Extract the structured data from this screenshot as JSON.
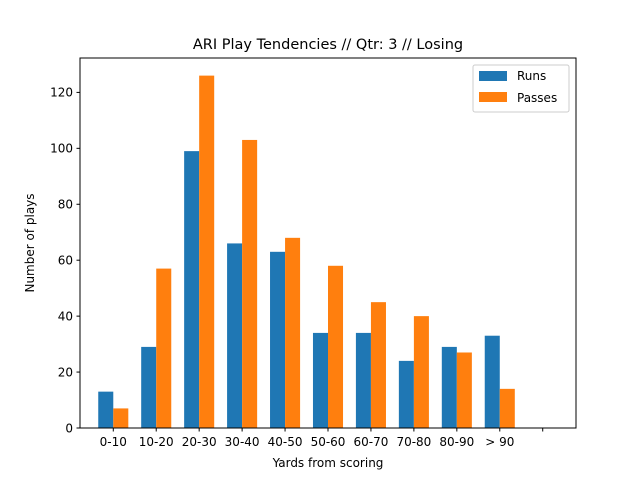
{
  "chart_data": {
    "type": "bar",
    "title": "ARI Play Tendencies // Qtr: 3 // Losing",
    "xlabel": "Yards from scoring",
    "ylabel": "Number of plays",
    "categories": [
      "0-10",
      "10-20",
      "20-30",
      "30-40",
      "40-50",
      "50-60",
      "60-70",
      "70-80",
      "80-90",
      "> 90",
      ""
    ],
    "series": [
      {
        "name": "Runs",
        "color": "#1f77b4",
        "values": [
          13,
          29,
          99,
          66,
          63,
          34,
          34,
          24,
          29,
          33,
          null
        ]
      },
      {
        "name": "Passes",
        "color": "#ff7f0e",
        "values": [
          7,
          57,
          126,
          103,
          68,
          58,
          45,
          40,
          27,
          14,
          null
        ]
      }
    ],
    "ylim": [
      0,
      132.3
    ],
    "yticks": [
      0,
      20,
      40,
      60,
      80,
      100,
      120
    ],
    "legend_position": "top-right",
    "grid": false
  }
}
